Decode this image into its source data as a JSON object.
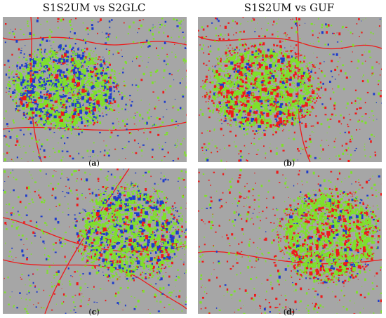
{
  "columns": [
    {
      "title": "S1S2UM vs S2GLC"
    },
    {
      "title": "S1S2UM vs GUF"
    }
  ],
  "panels": [
    {
      "label": "a",
      "column": 0,
      "row": 0
    },
    {
      "label": "b",
      "column": 1,
      "row": 0
    },
    {
      "label": "c",
      "column": 0,
      "row": 1
    },
    {
      "label": "d",
      "column": 1,
      "row": 1
    }
  ],
  "colors": {
    "background": "#a6a6a6",
    "agree": "#7ee02a",
    "red": "#ee1a1a",
    "blue": "#1e3ccc"
  }
}
